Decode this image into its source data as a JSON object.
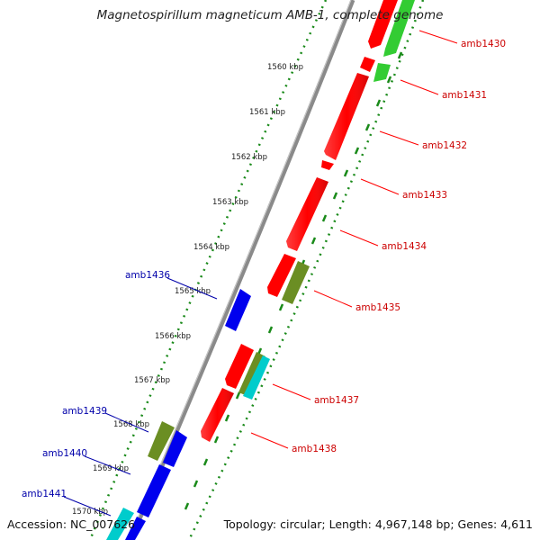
{
  "title": "Magnetospirillum magneticum AMB-1, complete genome",
  "footer": {
    "accession": "Accession: NC_007626",
    "summary": "Topology: circular; Length: 4,967,148 bp; Genes: 4,611"
  },
  "colors": {
    "backbone": "#8a8a8a",
    "ruler": "#1a8a1a",
    "forward_label": "#cc0000",
    "reverse_label": "#0000aa",
    "red": "#ff0000",
    "green": "#33cc33",
    "blue": "#0000ee",
    "olive": "#6b8e23",
    "cyan": "#00cccc"
  },
  "ticks": [
    "1560 kbp",
    "1561 kbp",
    "1562 kbp",
    "1563 kbp",
    "1564 kbp",
    "1565 kbp",
    "1566 kbp",
    "1567 kbp",
    "1568 kbp",
    "1569 kbp",
    "1570 kbp"
  ],
  "gene_labels": [
    "amb1430",
    "amb1431",
    "amb1432",
    "amb1433",
    "amb1434",
    "amb1435",
    "amb1436",
    "amb1437",
    "amb1438",
    "amb1439",
    "amb1440",
    "amb1441"
  ]
}
